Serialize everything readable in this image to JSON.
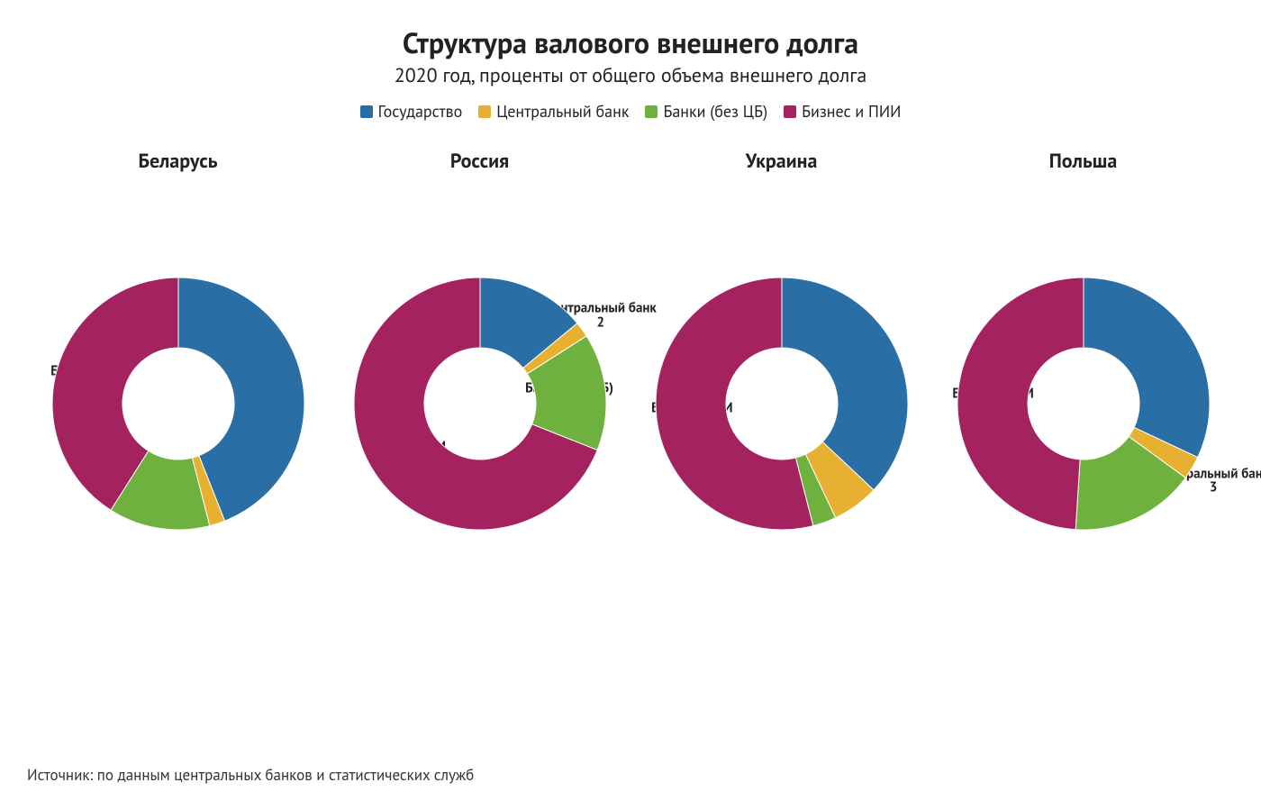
{
  "title": "Структура валового внешнего долга",
  "title_fontsize": 32,
  "subtitle": "2020 год, проценты от общего объема внешнего долга",
  "subtitle_fontsize": 22,
  "source": "Источник: по данным центральных банков и статистических служб",
  "chart_title_fontsize": 22,
  "colors": {
    "gov": "#2a6ea6",
    "cb": "#e8b030",
    "banks": "#6fb13f",
    "business": "#a3225f",
    "text": "#222222",
    "bg": "#ffffff"
  },
  "donut": {
    "outer_r": 140,
    "inner_r": 62,
    "svg_size": 330,
    "label_fontsize": 15
  },
  "legend": [
    {
      "key": "gov",
      "label": "Государство"
    },
    {
      "key": "cb",
      "label": "Центральный банк"
    },
    {
      "key": "banks",
      "label": "Банки (без ЦБ)"
    },
    {
      "key": "business",
      "label": "Бизнес и ПИИ"
    }
  ],
  "charts": [
    {
      "country": "Беларусь",
      "slices": [
        {
          "key": "gov",
          "label": "Государство",
          "value": 44,
          "show": true,
          "label_r": 100
        },
        {
          "key": "cb",
          "label": "Центральный банк",
          "value": 2,
          "show": true,
          "label_r": 100,
          "label_offset_deg": 20
        },
        {
          "key": "banks",
          "label": "Банки (без ЦБ)",
          "value": 13,
          "show": false
        },
        {
          "key": "business",
          "label": "Бизнес и ПИИ",
          "value": 41,
          "show": true,
          "label_r": 100
        }
      ]
    },
    {
      "country": "Россия",
      "slices": [
        {
          "key": "gov",
          "label": "Государство",
          "value": 14,
          "show": true,
          "label_r": 95
        },
        {
          "key": "cb",
          "label": "Центральный банк",
          "value": 2,
          "show": true,
          "label_r": 166
        },
        {
          "key": "banks",
          "label": "Банки (без ЦБ)",
          "value": 15,
          "show": true,
          "label_r": 100
        },
        {
          "key": "business",
          "label": "Бизнес и ПИИ",
          "value": 69,
          "show": true,
          "label_r": 100
        }
      ]
    },
    {
      "country": "Украина",
      "slices": [
        {
          "key": "gov",
          "label": "Государство",
          "value": 37,
          "show": true,
          "label_r": 100
        },
        {
          "key": "cb",
          "label": "Центральный банк",
          "value": 6,
          "show": true,
          "label_r": 100,
          "label_offset_deg": 12
        },
        {
          "key": "banks",
          "label": "Банки (без ЦБ)",
          "value": 3,
          "show": false
        },
        {
          "key": "business",
          "label": "Бизнес и ПИИ",
          "value": 54,
          "show": true,
          "label_r": 100
        }
      ]
    },
    {
      "country": "Польша",
      "slices": [
        {
          "key": "gov",
          "label": "Государство",
          "value": 32,
          "show": true,
          "label_r": 100
        },
        {
          "key": "cb",
          "label": "Центральный банк",
          "value": 3,
          "show": true,
          "label_r": 168
        },
        {
          "key": "banks",
          "label": "Банки (без ЦБ)",
          "value": 16,
          "show": true,
          "label_r": 100
        },
        {
          "key": "business",
          "label": "Бизнес и ПИИ",
          "value": 49,
          "show": true,
          "label_r": 100
        }
      ]
    }
  ]
}
